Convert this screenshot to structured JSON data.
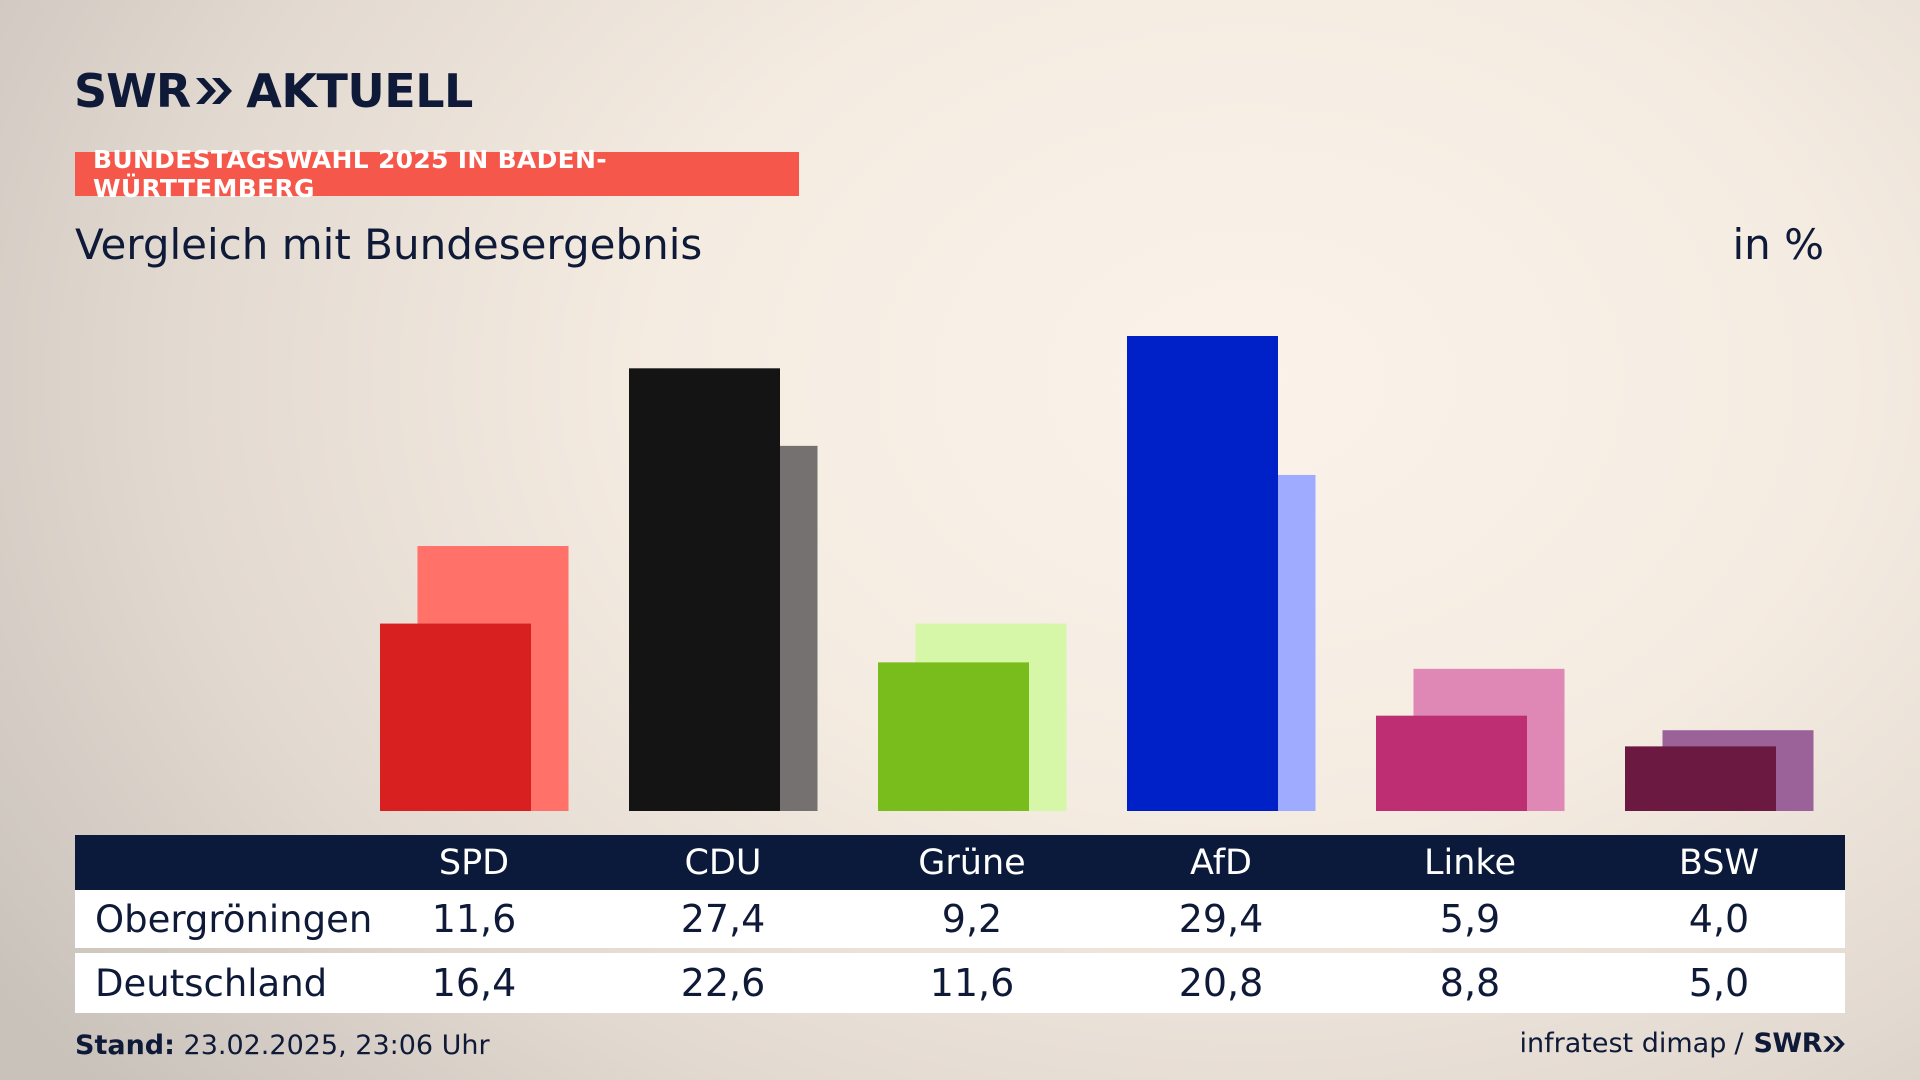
{
  "brand": {
    "name_left": "SWR",
    "name_right": "AKTUELL",
    "accent": "#f5584a",
    "navy": "#0b1a3b"
  },
  "header": {
    "tag": "BUNDESTAGSWAHL 2025 IN BADEN-WÜRTTEMBERG",
    "subtitle": "Vergleich mit Bundesergebnis",
    "unit": "in %"
  },
  "chart_data": {
    "type": "bar",
    "categories": [
      "SPD",
      "CDU",
      "Grüne",
      "AfD",
      "Linke",
      "BSW"
    ],
    "series": [
      {
        "name": "Obergröningen",
        "values": [
          11.6,
          27.4,
          9.2,
          29.4,
          5.9,
          4.0
        ],
        "colors": [
          "#d7201f",
          "#141414",
          "#79bd1d",
          "#0020c8",
          "#bd2e72",
          "#6b1940"
        ]
      },
      {
        "name": "Deutschland",
        "values": [
          16.4,
          22.6,
          11.6,
          20.8,
          8.8,
          5.0
        ],
        "colors": [
          "#ff7169",
          "#747170",
          "#d7f7a8",
          "#9eabff",
          "#df88b6",
          "#9b6299"
        ]
      }
    ],
    "display_values": {
      "Obergröningen": [
        "11,6",
        "27,4",
        "9,2",
        "29,4",
        "5,9",
        "4,0"
      ],
      "Deutschland": [
        "16,4",
        "22,6",
        "11,6",
        "20,8",
        "8,8",
        "5,0"
      ]
    },
    "ylim": [
      0,
      32
    ],
    "grid": false,
    "legend": "table-below"
  },
  "footer": {
    "stand_label": "Stand:",
    "stand_value": "23.02.2025, 23:06 Uhr",
    "source": "infratest dimap",
    "separator": "/",
    "source_brand": "SWR"
  }
}
